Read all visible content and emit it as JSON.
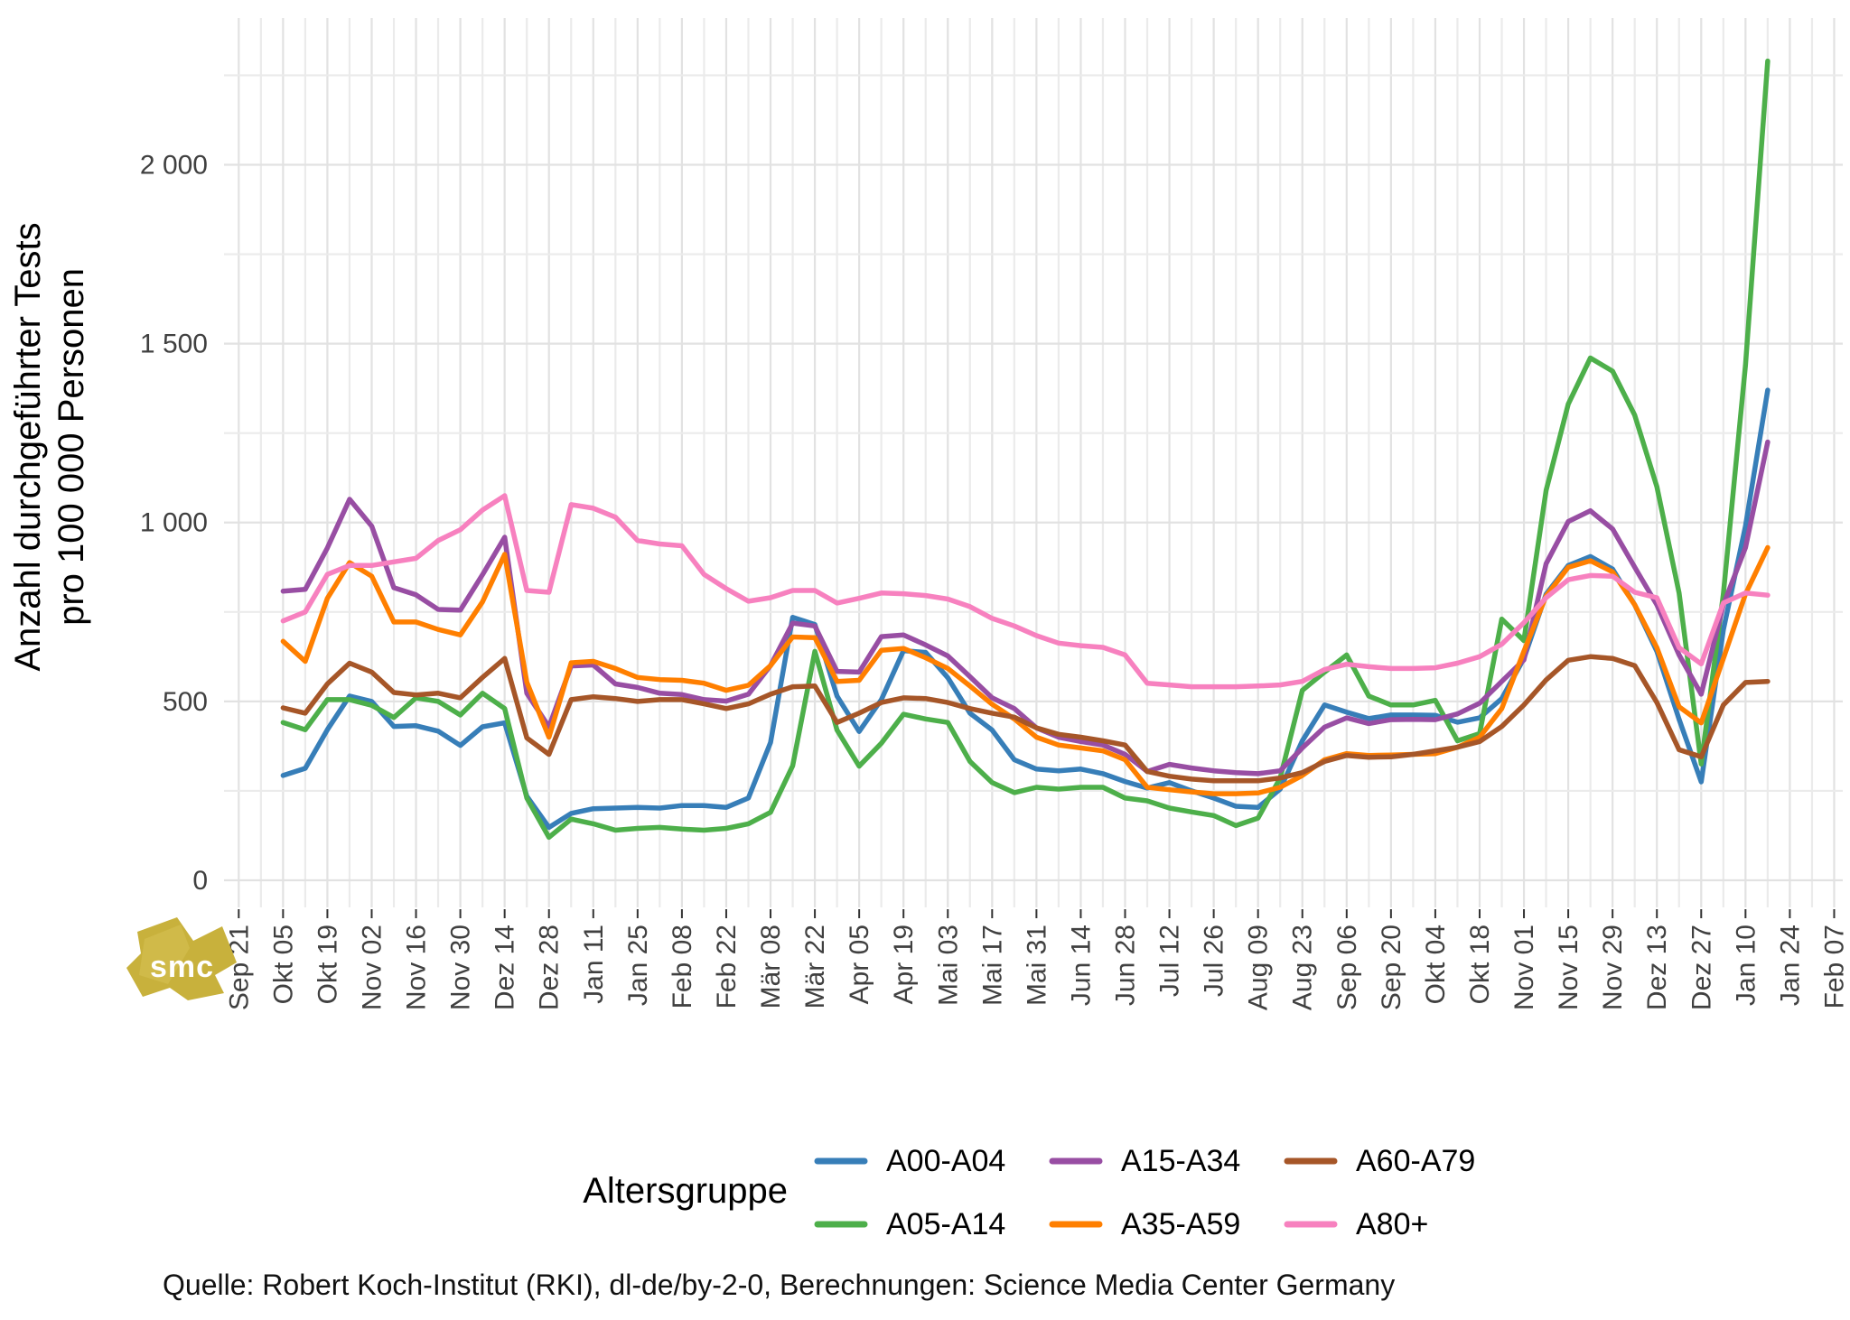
{
  "chart_data": {
    "type": "line",
    "title": "",
    "ylabel_line1": "Anzahl durchgeführter Tests",
    "ylabel_line2": "pro 100 000 Personen",
    "legend_title": "Altersgruppe",
    "caption": "Quelle: Robert Koch-Institut (RKI), dl-de/by-2-0, Berechnungen: Science Media Center Germany",
    "watermark": "smc",
    "watermark_color": "#c8b13c",
    "grid_color_major": "#e2e2e2",
    "grid_color_minor": "#ebebeb",
    "axis_text_color": "#404040",
    "x_tick_labels": [
      "Sep 21",
      "Okt 05",
      "Okt 19",
      "Nov 02",
      "Nov 16",
      "Nov 30",
      "Dez 14",
      "Dez 28",
      "Jan 11",
      "Jan 25",
      "Feb 08",
      "Feb 22",
      "Mär 08",
      "Mär 22",
      "Apr 05",
      "Apr 19",
      "Mai 03",
      "Mai 17",
      "Mai 31",
      "Jun 14",
      "Jun 28",
      "Jul 12",
      "Jul 26",
      "Aug 09",
      "Aug 23",
      "Sep 06",
      "Sep 20",
      "Okt 04",
      "Okt 18",
      "Nov 01",
      "Nov 15",
      "Nov 29",
      "Dez 13",
      "Dez 27",
      "Jan 10",
      "Jan 24",
      "Feb 07"
    ],
    "y_tick_labels": [
      "0",
      "500",
      "1 000",
      "1 500",
      "2 000"
    ],
    "y_tick_values": [
      0,
      500,
      1000,
      1500,
      2000
    ],
    "ylim": [
      0,
      2436
    ],
    "y_minor_step": 250,
    "weeks_start": "2020-10-05",
    "weeks_end": "2022-01-17",
    "weeks": [
      "2020-10-05",
      "2020-10-12",
      "2020-10-19",
      "2020-10-26",
      "2020-11-02",
      "2020-11-09",
      "2020-11-16",
      "2020-11-23",
      "2020-11-30",
      "2020-12-07",
      "2020-12-14",
      "2020-12-21",
      "2020-12-28",
      "2021-01-04",
      "2021-01-11",
      "2021-01-18",
      "2021-01-25",
      "2021-02-01",
      "2021-02-08",
      "2021-02-15",
      "2021-02-22",
      "2021-03-01",
      "2021-03-08",
      "2021-03-15",
      "2021-03-22",
      "2021-03-29",
      "2021-04-05",
      "2021-04-12",
      "2021-04-19",
      "2021-04-26",
      "2021-05-03",
      "2021-05-10",
      "2021-05-17",
      "2021-05-24",
      "2021-05-31",
      "2021-06-07",
      "2021-06-14",
      "2021-06-21",
      "2021-06-28",
      "2021-07-05",
      "2021-07-12",
      "2021-07-19",
      "2021-07-26",
      "2021-08-02",
      "2021-08-09",
      "2021-08-16",
      "2021-08-23",
      "2021-08-30",
      "2021-09-06",
      "2021-09-13",
      "2021-09-20",
      "2021-09-27",
      "2021-10-04",
      "2021-10-11",
      "2021-10-18",
      "2021-10-25",
      "2021-11-01",
      "2021-11-08",
      "2021-11-15",
      "2021-11-22",
      "2021-11-29",
      "2021-12-06",
      "2021-12-13",
      "2021-12-20",
      "2021-12-27",
      "2022-01-03",
      "2022-01-10",
      "2022-01-17"
    ],
    "series": [
      {
        "name": "A00-A04",
        "color": "#377EB8",
        "values": [
          293,
          313,
          421,
          515,
          500,
          430,
          432,
          417,
          377,
          429,
          440,
          235,
          148,
          187,
          200,
          202,
          204,
          202,
          209,
          209,
          204,
          230,
          385,
          735,
          715,
          515,
          416,
          505,
          642,
          637,
          566,
          467,
          420,
          337,
          311,
          306,
          311,
          298,
          276,
          258,
          273,
          250,
          230,
          207,
          204,
          255,
          390,
          490,
          470,
          452,
          462,
          462,
          461,
          442,
          454,
          508,
          620,
          800,
          880,
          905,
          870,
          770,
          640,
          450,
          275,
          700,
          990,
          1370
        ]
      },
      {
        "name": "A05-A14",
        "color": "#4DAF4A",
        "values": [
          441,
          421,
          505,
          505,
          489,
          455,
          510,
          500,
          462,
          523,
          480,
          230,
          120,
          171,
          158,
          140,
          145,
          148,
          143,
          140,
          145,
          158,
          190,
          320,
          640,
          420,
          319,
          383,
          464,
          451,
          441,
          332,
          273,
          245,
          260,
          255,
          260,
          260,
          230,
          222,
          202,
          191,
          181,
          153,
          174,
          286,
          531,
          582,
          630,
          515,
          490,
          490,
          503,
          390,
          410,
          730,
          670,
          1090,
          1331,
          1460,
          1423,
          1300,
          1100,
          803,
          325,
          800,
          1440,
          2290
        ]
      },
      {
        "name": "A15-A34",
        "color": "#984EA3",
        "values": [
          808,
          813,
          929,
          1065,
          990,
          818,
          798,
          757,
          755,
          854,
          959,
          523,
          429,
          599,
          602,
          549,
          539,
          523,
          519,
          505,
          501,
          520,
          600,
          719,
          711,
          584,
          582,
          681,
          686,
          658,
          627,
          569,
          510,
          480,
          426,
          400,
          388,
          378,
          352,
          304,
          324,
          314,
          306,
          301,
          298,
          306,
          370,
          428,
          454,
          438,
          449,
          450,
          449,
          465,
          495,
          556,
          616,
          885,
          1003,
          1033,
          982,
          875,
          770,
          630,
          520,
          770,
          930,
          1225
        ]
      },
      {
        "name": "A35-A59",
        "color": "#FF7F00",
        "values": [
          668,
          612,
          788,
          888,
          850,
          722,
          722,
          701,
          686,
          778,
          911,
          554,
          400,
          608,
          612,
          592,
          567,
          561,
          559,
          551,
          531,
          545,
          600,
          680,
          678,
          556,
          559,
          643,
          648,
          622,
          592,
          543,
          492,
          451,
          400,
          378,
          370,
          362,
          337,
          260,
          253,
          247,
          242,
          242,
          244,
          260,
          293,
          337,
          354,
          349,
          350,
          352,
          354,
          372,
          400,
          480,
          640,
          795,
          875,
          893,
          862,
          770,
          650,
          485,
          440,
          620,
          800,
          930
        ]
      },
      {
        "name": "A60-A79",
        "color": "#A65628",
        "values": [
          482,
          467,
          549,
          607,
          582,
          525,
          518,
          523,
          510,
          567,
          620,
          398,
          352,
          505,
          513,
          508,
          500,
          505,
          505,
          493,
          480,
          493,
          520,
          541,
          543,
          441,
          467,
          497,
          510,
          508,
          497,
          480,
          467,
          456,
          426,
          408,
          400,
          390,
          378,
          304,
          291,
          283,
          278,
          278,
          278,
          286,
          301,
          332,
          349,
          344,
          345,
          352,
          362,
          372,
          388,
          430,
          490,
          560,
          615,
          625,
          620,
          600,
          497,
          365,
          345,
          490,
          553,
          556
        ]
      },
      {
        "name": "A80+",
        "color": "#F781BF",
        "values": [
          725,
          750,
          855,
          880,
          880,
          890,
          900,
          950,
          980,
          1035,
          1075,
          810,
          805,
          1050,
          1040,
          1015,
          950,
          940,
          935,
          855,
          815,
          780,
          790,
          810,
          810,
          775,
          788,
          803,
          801,
          796,
          786,
          765,
          732,
          711,
          684,
          663,
          656,
          651,
          630,
          551,
          546,
          541,
          541,
          541,
          543,
          546,
          556,
          589,
          604,
          597,
          592,
          592,
          594,
          607,
          625,
          660,
          720,
          790,
          840,
          852,
          850,
          805,
          790,
          650,
          605,
          775,
          803,
          797
        ]
      }
    ]
  }
}
